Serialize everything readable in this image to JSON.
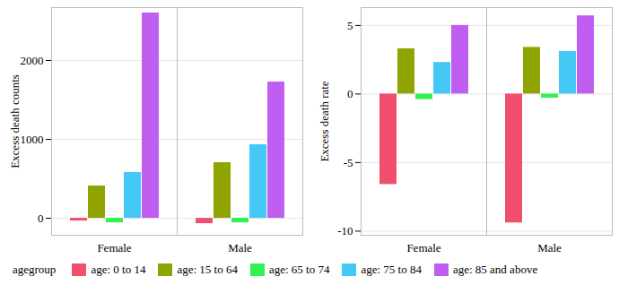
{
  "chart_data": [
    {
      "type": "bar",
      "y_label": "Excess death counts",
      "legend": "bottom",
      "legend_title": "agegroup",
      "grid": true,
      "categories": [
        "Female",
        "Male"
      ],
      "ylim": [
        -215,
        2670
      ],
      "yticks": [
        0,
        1000,
        2000
      ],
      "series": [
        {
          "name": "age: 0 to 14",
          "color": "#F0506E",
          "values": [
            -34,
            -68
          ]
        },
        {
          "name": "age: 15 to 64",
          "color": "#8FA400",
          "values": [
            409,
            705
          ]
        },
        {
          "name": "age: 65 to 74",
          "color": "#33F055",
          "values": [
            -57,
            -57
          ]
        },
        {
          "name": "age: 75 to 84",
          "color": "#44C8F5",
          "values": [
            580,
            932
          ]
        },
        {
          "name": "age: 85 and above",
          "color": "#C05EF2",
          "values": [
            2602,
            1727
          ]
        }
      ]
    },
    {
      "type": "bar",
      "y_label": "Excess death rate",
      "grid": true,
      "categories": [
        "Female",
        "Male"
      ],
      "ylim": [
        -10.3,
        6.3
      ],
      "yticks": [
        -10,
        -5,
        0,
        5
      ],
      "series": [
        {
          "name": "age: 0 to 14",
          "color": "#F0506E",
          "values": [
            -6.6,
            -9.4
          ]
        },
        {
          "name": "age: 15 to 64",
          "color": "#8FA400",
          "values": [
            3.3,
            3.4
          ]
        },
        {
          "name": "age: 65 to 74",
          "color": "#33F055",
          "values": [
            -0.4,
            -0.3
          ]
        },
        {
          "name": "age: 75 to 84",
          "color": "#44C8F5",
          "values": [
            2.3,
            3.1
          ]
        },
        {
          "name": "age: 85 and above",
          "color": "#C05EF2",
          "values": [
            5.0,
            5.7
          ]
        }
      ]
    }
  ]
}
